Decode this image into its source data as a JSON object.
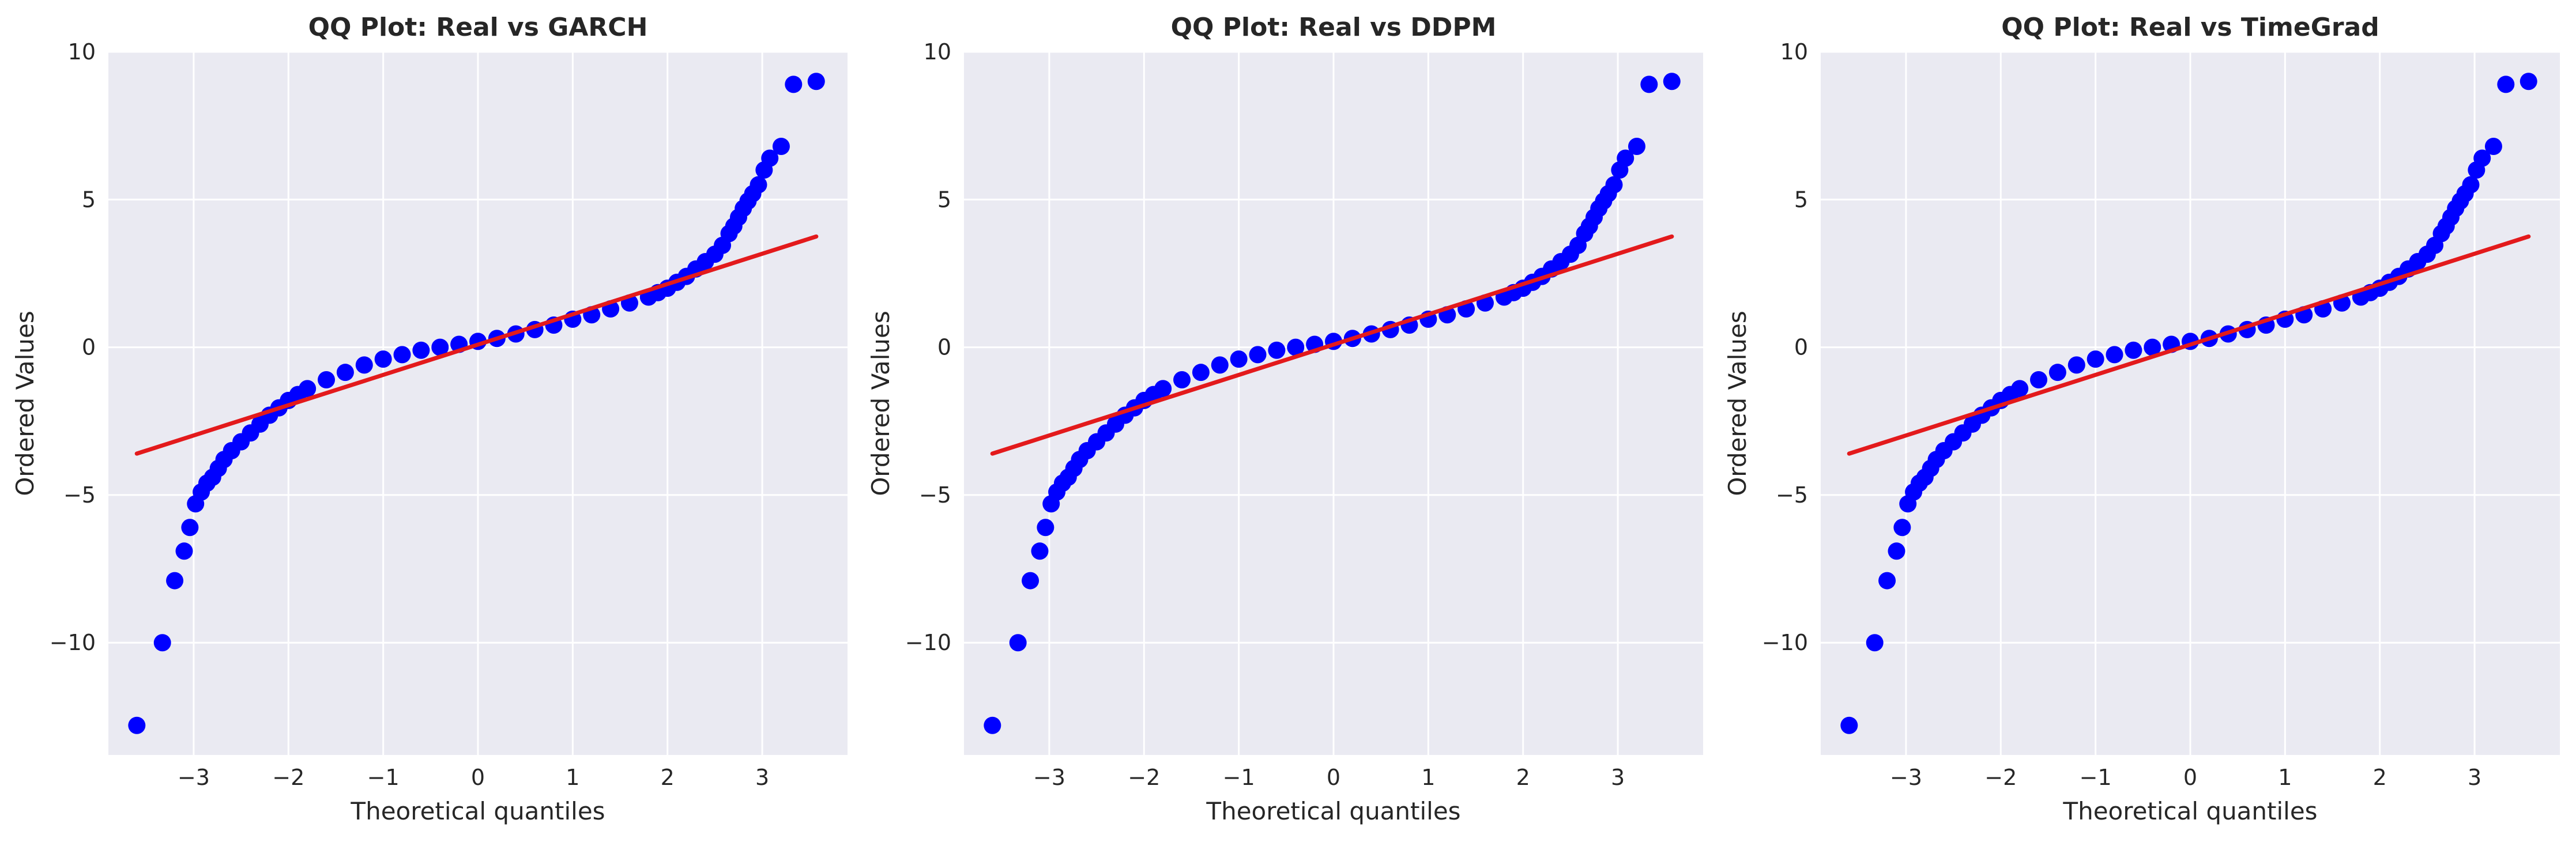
{
  "chart_data": [
    {
      "type": "scatter",
      "title": "QQ Plot: Real vs GARCH",
      "xlabel": "Theoretical quantiles",
      "ylabel": "Ordered Values",
      "xlim": [
        -3.9,
        3.9
      ],
      "ylim": [
        -13.8,
        10.0
      ],
      "xticks": [
        -3,
        -2,
        -1,
        0,
        1,
        2,
        3
      ],
      "yticks": [
        -10,
        -5,
        0,
        5,
        10
      ],
      "grid": true,
      "series": [
        {
          "kind": "points",
          "color": "#0000ff",
          "x": [
            -3.6,
            -3.33,
            -3.2,
            -3.1,
            -3.04,
            -2.98,
            -2.92,
            -2.86,
            -2.8,
            -2.74,
            -2.68,
            -2.6,
            -2.5,
            -2.4,
            -2.3,
            -2.2,
            -2.1,
            -2.0,
            -1.9,
            -1.8,
            -1.6,
            -1.4,
            -1.2,
            -1.0,
            -0.8,
            -0.6,
            -0.4,
            -0.2,
            0.0,
            0.2,
            0.4,
            0.6,
            0.8,
            1.0,
            1.2,
            1.4,
            1.6,
            1.8,
            1.9,
            2.0,
            2.1,
            2.2,
            2.3,
            2.4,
            2.5,
            2.58,
            2.65,
            2.7,
            2.75,
            2.8,
            2.85,
            2.9,
            2.96,
            3.02,
            3.08,
            3.2,
            3.33,
            3.57
          ],
          "y": [
            -12.8,
            -10.0,
            -7.9,
            -6.9,
            -6.1,
            -5.3,
            -4.9,
            -4.6,
            -4.4,
            -4.1,
            -3.8,
            -3.5,
            -3.2,
            -2.9,
            -2.6,
            -2.3,
            -2.05,
            -1.8,
            -1.6,
            -1.4,
            -1.1,
            -0.85,
            -0.6,
            -0.4,
            -0.25,
            -0.1,
            0.0,
            0.1,
            0.2,
            0.3,
            0.45,
            0.6,
            0.75,
            0.95,
            1.1,
            1.3,
            1.5,
            1.7,
            1.85,
            2.0,
            2.2,
            2.4,
            2.65,
            2.9,
            3.15,
            3.45,
            3.85,
            4.1,
            4.4,
            4.7,
            4.95,
            5.2,
            5.5,
            6.0,
            6.4,
            6.8,
            8.9,
            9.0
          ]
        },
        {
          "kind": "fit-line",
          "color": "#e31a1c",
          "x": [
            -3.6,
            3.57
          ],
          "y": [
            -3.6,
            3.75
          ]
        }
      ]
    },
    {
      "type": "scatter",
      "title": "QQ Plot: Real vs DDPM",
      "xlabel": "Theoretical quantiles",
      "ylabel": "Ordered Values",
      "xlim": [
        -3.9,
        3.9
      ],
      "ylim": [
        -13.8,
        10.0
      ],
      "xticks": [
        -3,
        -2,
        -1,
        0,
        1,
        2,
        3
      ],
      "yticks": [
        -10,
        -5,
        0,
        5,
        10
      ],
      "grid": true,
      "series": [
        {
          "kind": "points",
          "color": "#0000ff",
          "x": [
            -3.6,
            -3.33,
            -3.2,
            -3.1,
            -3.04,
            -2.98,
            -2.92,
            -2.86,
            -2.8,
            -2.74,
            -2.68,
            -2.6,
            -2.5,
            -2.4,
            -2.3,
            -2.2,
            -2.1,
            -2.0,
            -1.9,
            -1.8,
            -1.6,
            -1.4,
            -1.2,
            -1.0,
            -0.8,
            -0.6,
            -0.4,
            -0.2,
            0.0,
            0.2,
            0.4,
            0.6,
            0.8,
            1.0,
            1.2,
            1.4,
            1.6,
            1.8,
            1.9,
            2.0,
            2.1,
            2.2,
            2.3,
            2.4,
            2.5,
            2.58,
            2.65,
            2.7,
            2.75,
            2.8,
            2.85,
            2.9,
            2.96,
            3.02,
            3.08,
            3.2,
            3.33,
            3.57
          ],
          "y": [
            -12.8,
            -10.0,
            -7.9,
            -6.9,
            -6.1,
            -5.3,
            -4.9,
            -4.6,
            -4.4,
            -4.1,
            -3.8,
            -3.5,
            -3.2,
            -2.9,
            -2.6,
            -2.3,
            -2.05,
            -1.8,
            -1.6,
            -1.4,
            -1.1,
            -0.85,
            -0.6,
            -0.4,
            -0.25,
            -0.1,
            0.0,
            0.1,
            0.2,
            0.3,
            0.45,
            0.6,
            0.75,
            0.95,
            1.1,
            1.3,
            1.5,
            1.7,
            1.85,
            2.0,
            2.2,
            2.4,
            2.65,
            2.9,
            3.15,
            3.45,
            3.85,
            4.1,
            4.4,
            4.7,
            4.95,
            5.2,
            5.5,
            6.0,
            6.4,
            6.8,
            8.9,
            9.0
          ]
        },
        {
          "kind": "fit-line",
          "color": "#e31a1c",
          "x": [
            -3.6,
            3.57
          ],
          "y": [
            -3.6,
            3.75
          ]
        }
      ]
    },
    {
      "type": "scatter",
      "title": "QQ Plot: Real vs TimeGrad",
      "xlabel": "Theoretical quantiles",
      "ylabel": "Ordered Values",
      "xlim": [
        -3.9,
        3.9
      ],
      "ylim": [
        -13.8,
        10.0
      ],
      "xticks": [
        -3,
        -2,
        -1,
        0,
        1,
        2,
        3
      ],
      "yticks": [
        -10,
        -5,
        0,
        5,
        10
      ],
      "grid": true,
      "series": [
        {
          "kind": "points",
          "color": "#0000ff",
          "x": [
            -3.6,
            -3.33,
            -3.2,
            -3.1,
            -3.04,
            -2.98,
            -2.92,
            -2.86,
            -2.8,
            -2.74,
            -2.68,
            -2.6,
            -2.5,
            -2.4,
            -2.3,
            -2.2,
            -2.1,
            -2.0,
            -1.9,
            -1.8,
            -1.6,
            -1.4,
            -1.2,
            -1.0,
            -0.8,
            -0.6,
            -0.4,
            -0.2,
            0.0,
            0.2,
            0.4,
            0.6,
            0.8,
            1.0,
            1.2,
            1.4,
            1.6,
            1.8,
            1.9,
            2.0,
            2.1,
            2.2,
            2.3,
            2.4,
            2.5,
            2.58,
            2.65,
            2.7,
            2.75,
            2.8,
            2.85,
            2.9,
            2.96,
            3.02,
            3.08,
            3.2,
            3.33,
            3.57
          ],
          "y": [
            -12.8,
            -10.0,
            -7.9,
            -6.9,
            -6.1,
            -5.3,
            -4.9,
            -4.6,
            -4.4,
            -4.1,
            -3.8,
            -3.5,
            -3.2,
            -2.9,
            -2.6,
            -2.3,
            -2.05,
            -1.8,
            -1.6,
            -1.4,
            -1.1,
            -0.85,
            -0.6,
            -0.4,
            -0.25,
            -0.1,
            0.0,
            0.1,
            0.2,
            0.3,
            0.45,
            0.6,
            0.75,
            0.95,
            1.1,
            1.3,
            1.5,
            1.7,
            1.85,
            2.0,
            2.2,
            2.4,
            2.65,
            2.9,
            3.15,
            3.45,
            3.85,
            4.1,
            4.4,
            4.7,
            4.95,
            5.2,
            5.5,
            6.0,
            6.4,
            6.8,
            8.9,
            9.0
          ]
        },
        {
          "kind": "fit-line",
          "color": "#e31a1c",
          "x": [
            -3.6,
            3.57
          ],
          "y": [
            -3.6,
            3.75
          ]
        }
      ]
    }
  ]
}
